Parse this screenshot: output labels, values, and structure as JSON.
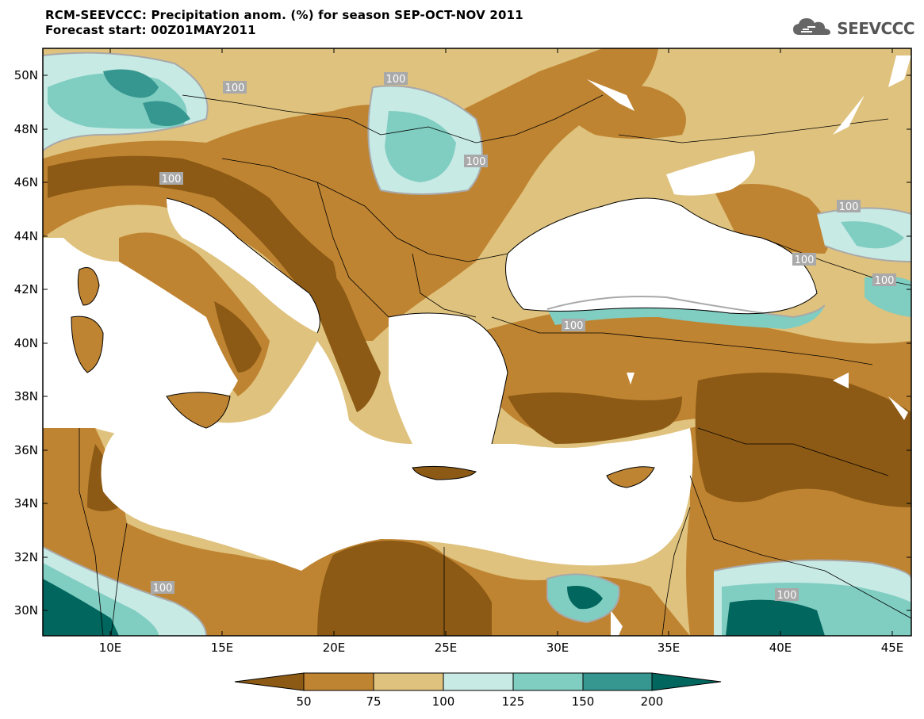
{
  "header": {
    "line1": "RCM-SEEVCCC: Precipitation anom. (%) for season SEP-OCT-NOV 2011",
    "line2": "Forecast start: 00Z01MAY2011"
  },
  "logo": {
    "text": "SEEVCCC",
    "icon": "cloud-icon"
  },
  "map": {
    "lat_ticks": [
      "50N",
      "48N",
      "46N",
      "44N",
      "42N",
      "40N",
      "38N",
      "36N",
      "34N",
      "32N",
      "30N"
    ],
    "lon_ticks": [
      "10E",
      "15E",
      "20E",
      "25E",
      "30E",
      "35E",
      "40E",
      "45E"
    ],
    "contour_label": "100",
    "colors": {
      "lt50": "#8c5a14",
      "c50_75": "#bf8432",
      "c75_100": "#dfc27d",
      "c100_125": "#c7eae5",
      "c125_150": "#80cdc1",
      "c150_200": "#35978f",
      "gt200": "#01665e",
      "sea": "#ffffff"
    }
  },
  "colorbar": {
    "labels": [
      "50",
      "75",
      "100",
      "125",
      "150",
      "200"
    ]
  }
}
